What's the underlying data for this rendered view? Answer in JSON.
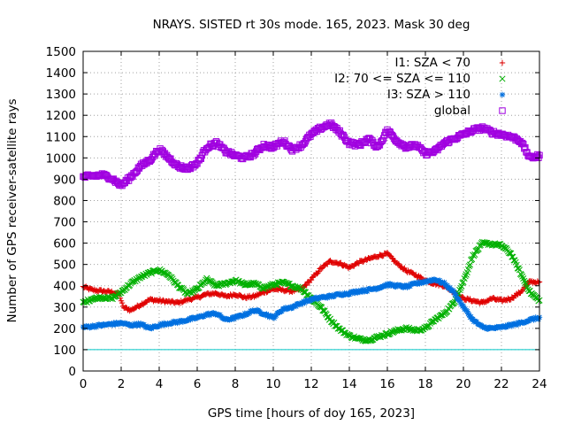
{
  "chart_data": {
    "type": "scatter",
    "title": "NRAYS. SISTED rt 30s mode. 165, 2023. Mask 30 deg",
    "xlabel": "GPS time [hours of doy 165, 2023]",
    "ylabel": "Number of GPS receiver-satellite rays",
    "xlim": [
      0,
      24
    ],
    "ylim": [
      0,
      1500
    ],
    "x_ticks": [
      0,
      2,
      4,
      6,
      8,
      10,
      12,
      14,
      16,
      18,
      20,
      22,
      24
    ],
    "y_ticks": [
      0,
      100,
      200,
      300,
      400,
      500,
      600,
      700,
      800,
      900,
      1000,
      1100,
      1200,
      1300,
      1400,
      1500
    ],
    "grid": true,
    "legend_position": "top-right",
    "reference_line": {
      "y": 100,
      "color": "#00c8c8"
    },
    "series": [
      {
        "name": "I1: SZA < 70",
        "marker": "plus",
        "color": "#e00000",
        "x": [
          0,
          0.5,
          1,
          1.5,
          1.9,
          2.1,
          2.5,
          3,
          3.5,
          4,
          4.5,
          5,
          5.5,
          6,
          6.5,
          7,
          7.5,
          8,
          8.5,
          9,
          9.5,
          10,
          10.5,
          11,
          11.5,
          12,
          12.5,
          13,
          13.5,
          14,
          14.5,
          15,
          15.5,
          16,
          16.5,
          17,
          17.5,
          18,
          18.5,
          19,
          19.5,
          20,
          20.5,
          21,
          21.5,
          22,
          22.5,
          23,
          23.5,
          24
        ],
        "y": [
          395,
          380,
          375,
          370,
          360,
          300,
          285,
          310,
          335,
          330,
          325,
          320,
          335,
          345,
          360,
          365,
          350,
          360,
          345,
          350,
          370,
          385,
          380,
          375,
          385,
          430,
          480,
          515,
          505,
          485,
          510,
          525,
          540,
          550,
          505,
          470,
          450,
          425,
          410,
          400,
          370,
          340,
          330,
          320,
          340,
          330,
          340,
          370,
          420,
          415
        ]
      },
      {
        "name": "I2: 70 <= SZA <= 110",
        "marker": "cross",
        "color": "#00b000",
        "x": [
          0,
          0.5,
          1,
          1.5,
          2,
          2.5,
          3,
          3.5,
          4,
          4.5,
          5,
          5.5,
          6,
          6.5,
          7,
          7.5,
          8,
          8.5,
          9,
          9.5,
          10,
          10.5,
          11,
          11.5,
          12,
          12.5,
          13,
          13.5,
          14,
          14.5,
          15,
          15.5,
          16,
          16.5,
          17,
          17.5,
          18,
          18.5,
          19,
          19.5,
          20,
          20.5,
          21,
          21.5,
          22,
          22.5,
          23,
          23.5,
          24
        ],
        "y": [
          320,
          340,
          345,
          340,
          370,
          410,
          440,
          460,
          475,
          450,
          400,
          360,
          385,
          430,
          400,
          410,
          425,
          405,
          410,
          390,
          405,
          415,
          400,
          385,
          340,
          300,
          240,
          195,
          165,
          150,
          145,
          160,
          175,
          190,
          200,
          190,
          200,
          240,
          270,
          320,
          420,
          540,
          600,
          595,
          590,
          550,
          460,
          370,
          330
        ]
      },
      {
        "name": "I3: SZA > 110",
        "marker": "star",
        "color": "#0070e0",
        "x": [
          0,
          0.5,
          1,
          1.5,
          2,
          2.5,
          3,
          3.5,
          4,
          4.5,
          5,
          5.5,
          6,
          6.5,
          7,
          7.5,
          8,
          8.5,
          9,
          9.5,
          10,
          10.5,
          11,
          11.5,
          12,
          12.5,
          13,
          13.5,
          14,
          14.5,
          15,
          15.5,
          16,
          16.5,
          17,
          17.5,
          18,
          18.5,
          19,
          19.5,
          20,
          20.5,
          21,
          21.5,
          22,
          22.5,
          23,
          23.5,
          24
        ],
        "y": [
          205,
          210,
          215,
          220,
          225,
          215,
          220,
          200,
          215,
          225,
          230,
          240,
          250,
          265,
          270,
          240,
          250,
          265,
          285,
          270,
          250,
          290,
          300,
          320,
          335,
          345,
          350,
          360,
          365,
          375,
          380,
          390,
          405,
          400,
          395,
          410,
          420,
          430,
          410,
          370,
          300,
          240,
          205,
          200,
          205,
          215,
          225,
          240,
          250
        ]
      },
      {
        "name": "global",
        "marker": "square",
        "color": "#a000e0",
        "x": [
          0,
          0.5,
          1,
          1.5,
          2,
          2.5,
          3,
          3.5,
          4,
          4.5,
          5,
          5.5,
          6,
          6.5,
          7,
          7.5,
          8,
          8.5,
          9,
          9.5,
          10,
          10.5,
          11,
          11.5,
          12,
          12.5,
          13,
          13.5,
          14,
          14.5,
          15,
          15.5,
          16,
          16.5,
          17,
          17.5,
          18,
          18.5,
          19,
          19.5,
          20,
          20.5,
          21,
          21.5,
          22,
          22.5,
          23,
          23.5,
          24
        ],
        "y": [
          910,
          915,
          920,
          905,
          870,
          910,
          960,
          990,
          1040,
          1000,
          960,
          950,
          975,
          1050,
          1070,
          1030,
          1010,
          1000,
          1020,
          1060,
          1050,
          1080,
          1040,
          1060,
          1110,
          1140,
          1160,
          1120,
          1070,
          1060,
          1090,
          1050,
          1130,
          1080,
          1050,
          1060,
          1020,
          1030,
          1070,
          1090,
          1110,
          1130,
          1140,
          1120,
          1110,
          1100,
          1080,
          1000,
          1010
        ]
      }
    ]
  }
}
